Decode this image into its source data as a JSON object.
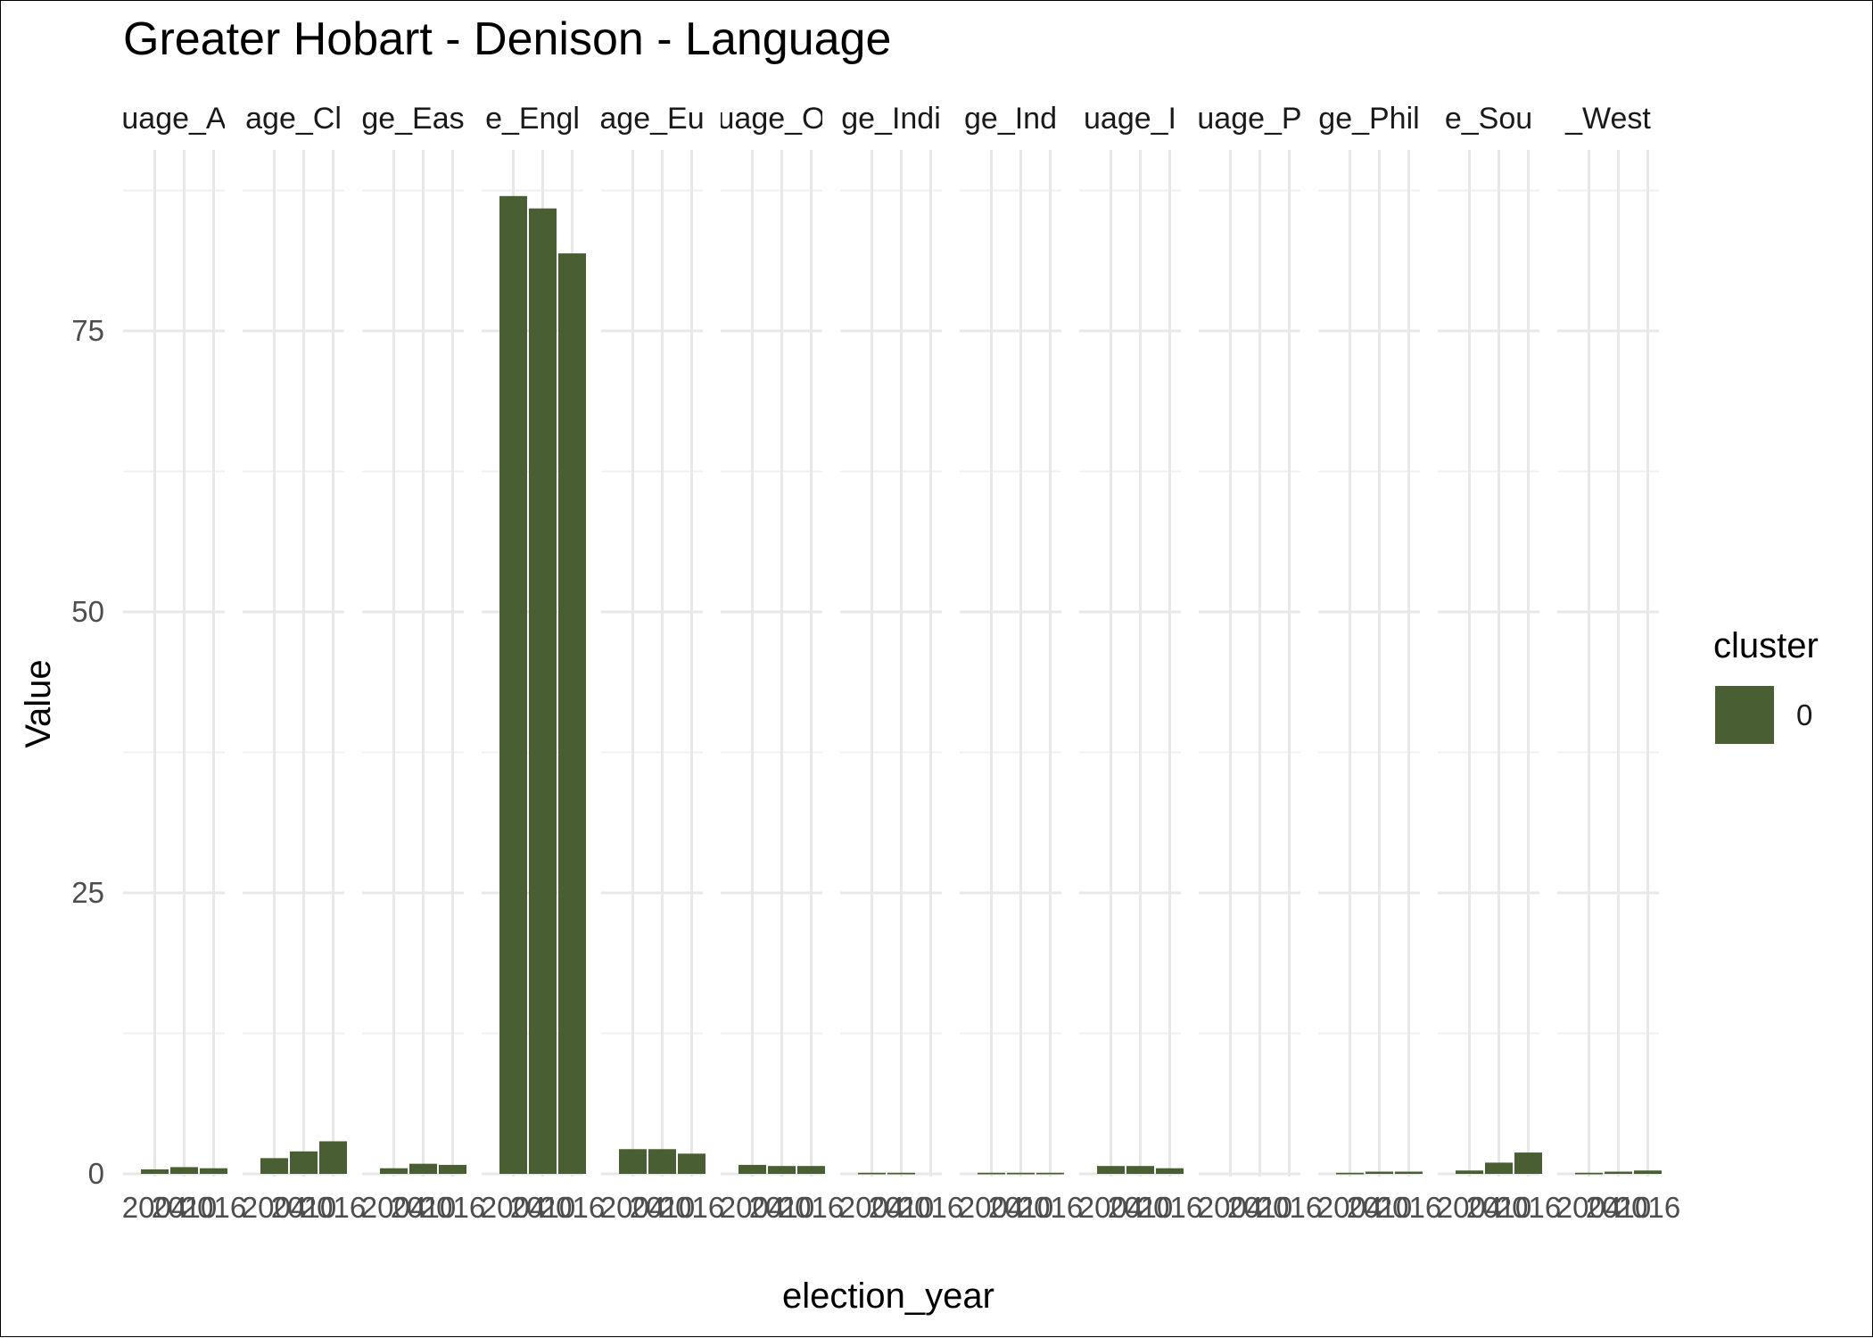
{
  "chart_data": {
    "type": "bar",
    "title": "Greater Hobart - Denison - Language",
    "xlabel": "election_year",
    "ylabel": "Value",
    "ylim": [
      0,
      88
    ],
    "yticks": [
      0,
      25,
      50,
      75
    ],
    "x_categories": [
      "2004",
      "2010",
      "2016"
    ],
    "x_tick_labels": [
      "2004",
      "2010",
      "2016"
    ],
    "grid": true,
    "facets": [
      {
        "label": "uage_A",
        "values": [
          0.4,
          0.6,
          0.5
        ]
      },
      {
        "label": "age_Cl",
        "values": [
          1.4,
          2.0,
          2.9
        ]
      },
      {
        "label": "ge_Eas",
        "values": [
          0.5,
          0.9,
          0.8
        ]
      },
      {
        "label": "e_Engl",
        "values": [
          87.0,
          85.9,
          81.9
        ]
      },
      {
        "label": "age_Eu",
        "values": [
          2.2,
          2.2,
          1.8
        ]
      },
      {
        "label": "uage_O",
        "values": [
          0.8,
          0.7,
          0.7
        ]
      },
      {
        "label": "ge_Indi",
        "values": [
          0.1,
          0.1,
          0.0
        ]
      },
      {
        "label": "ge_Ind",
        "values": [
          0.1,
          0.1,
          0.1
        ]
      },
      {
        "label": "uage_I",
        "values": [
          0.7,
          0.7,
          0.5
        ]
      },
      {
        "label": "uage_P",
        "values": [
          0.0,
          0.0,
          0.0
        ]
      },
      {
        "label": "ge_Phil",
        "values": [
          0.1,
          0.2,
          0.2
        ]
      },
      {
        "label": "e_Sou",
        "values": [
          0.3,
          1.0,
          1.9
        ]
      },
      {
        "label": "_West",
        "values": [
          0.1,
          0.2,
          0.3
        ]
      }
    ],
    "series": [
      {
        "name": "0",
        "color": "#4a5e34"
      }
    ],
    "legend": {
      "title": "cluster",
      "position": "right"
    }
  }
}
